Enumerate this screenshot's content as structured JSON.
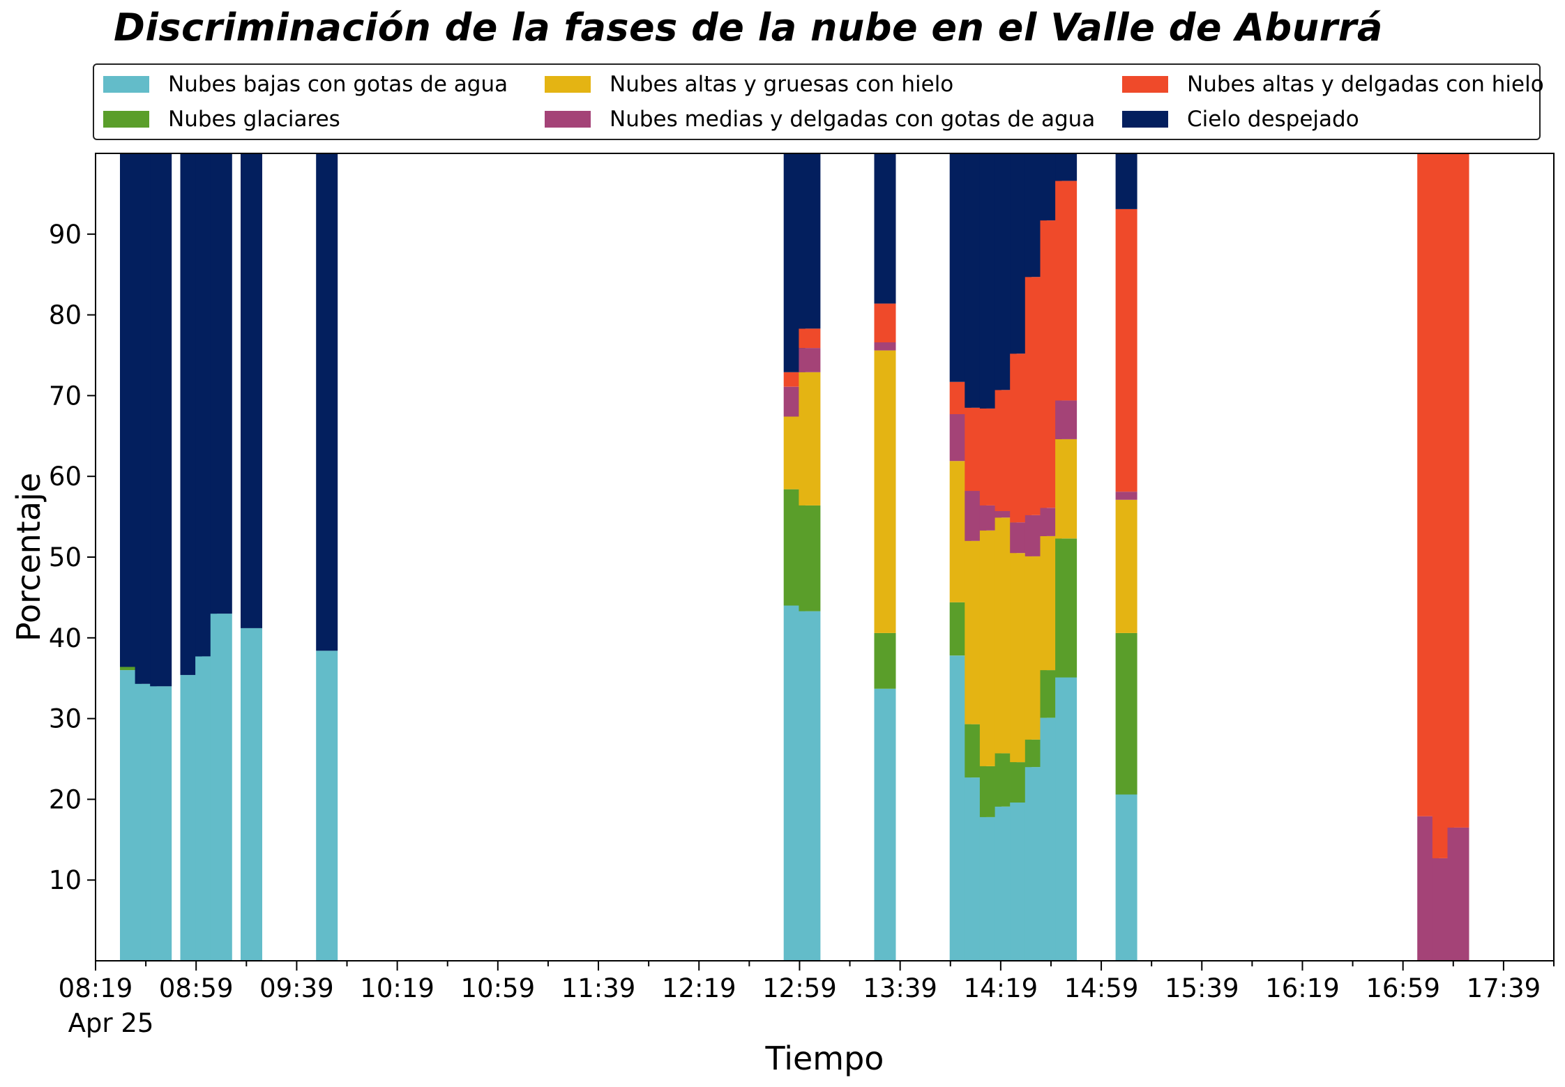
{
  "chart_data": {
    "type": "bar",
    "stacked": true,
    "title": "Discriminación de la fases de la nube en el Valle de Aburrá",
    "xlabel": "Tiempo",
    "ylabel": "Porcentaje",
    "ylim": [
      0,
      100
    ],
    "yticks": [
      10,
      20,
      30,
      40,
      50,
      60,
      70,
      80,
      90
    ],
    "x_start": "08:19",
    "x_end": "17:59",
    "xticks_major": [
      "08:19",
      "08:59",
      "09:39",
      "10:19",
      "10:59",
      "11:39",
      "12:19",
      "12:59",
      "13:39",
      "14:19",
      "14:59",
      "15:39",
      "16:19",
      "16:59",
      "17:39"
    ],
    "xticks_minor": [
      "08:39",
      "09:19",
      "09:59",
      "10:39",
      "11:19",
      "11:59",
      "12:39",
      "13:19",
      "13:59",
      "14:39",
      "15:19",
      "15:59",
      "16:39",
      "17:19",
      "17:59"
    ],
    "date_label": "Apr 25",
    "legend_position": "top",
    "grid": false,
    "categories": [
      "08:33",
      "08:39",
      "08:45",
      "08:57",
      "09:03",
      "09:09",
      "09:21",
      "09:51",
      "12:57",
      "13:03",
      "13:33",
      "14:03",
      "14:09",
      "14:15",
      "14:21",
      "14:27",
      "14:33",
      "14:39",
      "14:45",
      "15:09",
      "17:09",
      "17:15",
      "17:21"
    ],
    "series": [
      {
        "name": "Nubes bajas con gotas de agua",
        "color": "#63bcc9",
        "values": [
          36.0,
          34.3,
          34.0,
          35.4,
          37.7,
          43.0,
          41.2,
          38.4,
          44.0,
          43.3,
          33.7,
          37.8,
          22.7,
          17.8,
          19.1,
          19.6,
          24.0,
          30.1,
          35.1,
          20.6,
          0,
          0,
          0
        ]
      },
      {
        "name": "Nubes glaciares",
        "color": "#5a9e2a",
        "values": [
          0.4,
          0,
          0,
          0,
          0,
          0,
          0,
          0,
          14.4,
          13.1,
          6.9,
          6.6,
          6.6,
          6.3,
          6.6,
          5.0,
          3.4,
          5.9,
          17.2,
          20.0,
          0,
          0,
          0
        ]
      },
      {
        "name": "Nubes altas y gruesas con hielo",
        "color": "#e4b413",
        "values": [
          0,
          0,
          0,
          0,
          0,
          0,
          0,
          0,
          9.0,
          16.5,
          35.0,
          17.5,
          22.7,
          29.2,
          29.2,
          25.9,
          22.7,
          16.6,
          12.3,
          16.5,
          0,
          0,
          0
        ]
      },
      {
        "name": "Nubes medias y delgadas con gotas de agua",
        "color": "#a44377",
        "values": [
          0,
          0,
          0,
          0,
          0,
          0,
          0,
          0,
          3.7,
          3.0,
          1.0,
          5.8,
          6.2,
          3.1,
          0.8,
          3.8,
          5.1,
          3.5,
          4.8,
          1.0,
          17.9,
          12.7,
          16.5
        ]
      },
      {
        "name": "Nubes altas y delgadas con hielo",
        "color": "#ef4a2a",
        "values": [
          0,
          0,
          0,
          0,
          0,
          0,
          0,
          0,
          1.8,
          2.4,
          4.8,
          4.0,
          10.3,
          12.0,
          15.0,
          20.9,
          29.5,
          35.6,
          27.2,
          35.0,
          82.1,
          87.3,
          83.5
        ]
      },
      {
        "name": "Cielo despejado",
        "color": "#031f5e",
        "values": [
          63.6,
          65.7,
          66.0,
          64.6,
          62.3,
          57.0,
          58.8,
          61.6,
          27.1,
          21.7,
          18.6,
          28.3,
          31.5,
          31.6,
          29.3,
          24.8,
          15.3,
          8.3,
          3.4,
          6.9,
          0,
          0,
          0
        ]
      }
    ]
  }
}
